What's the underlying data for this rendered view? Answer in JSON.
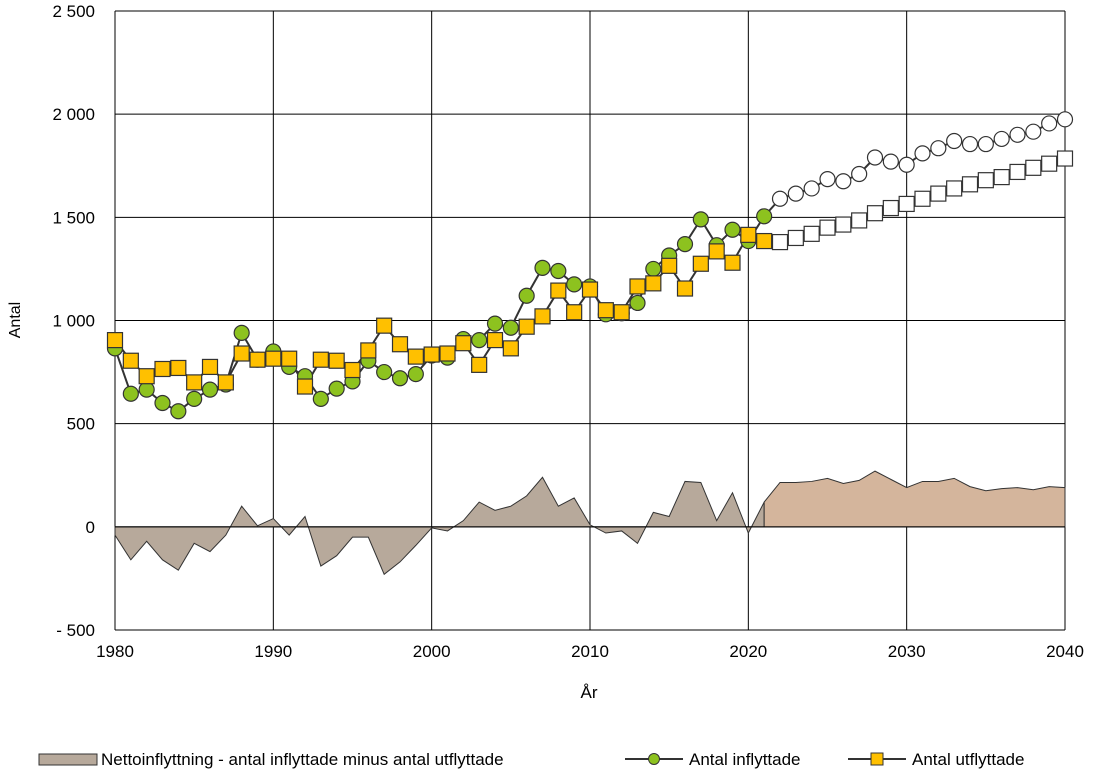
{
  "chart_data": {
    "type": "line",
    "title": "",
    "xlabel": "År",
    "ylabel": "Antal",
    "xlim": [
      1980,
      2040
    ],
    "ylim": [
      -500,
      2500
    ],
    "grid": true,
    "legend_position": "bottom",
    "x_ticks": [
      1980,
      1990,
      2000,
      2010,
      2020,
      2030,
      2040
    ],
    "x_tick_labels": [
      "1980",
      "1990",
      "2000",
      "2010",
      "2020",
      "2030",
      "2040"
    ],
    "y_ticks": [
      -500,
      0,
      500,
      1000,
      1500,
      2000,
      2500
    ],
    "y_tick_labels": [
      "- 500",
      "0",
      "500",
      "1 000",
      "1 500",
      "2 000",
      "2 500"
    ],
    "forecast_start_year": 2022,
    "colors": {
      "inflyttade": "#8dc21f",
      "utflyttade": "#ffc000",
      "netto_historical": "#b7a99b",
      "netto_forecast": "#d4b59c",
      "line": "#333333"
    },
    "series": [
      {
        "name": "Nettoinflyttning - antal inflyttade minus antal utflyttade",
        "kind": "area",
        "x": [
          1980,
          1981,
          1982,
          1983,
          1984,
          1985,
          1986,
          1987,
          1988,
          1989,
          1990,
          1991,
          1992,
          1993,
          1994,
          1995,
          1996,
          1997,
          1998,
          1999,
          2000,
          2001,
          2002,
          2003,
          2004,
          2005,
          2006,
          2007,
          2008,
          2009,
          2010,
          2011,
          2012,
          2013,
          2014,
          2015,
          2016,
          2017,
          2018,
          2019,
          2020,
          2021,
          2022,
          2023,
          2024,
          2025,
          2026,
          2027,
          2028,
          2029,
          2030,
          2031,
          2032,
          2033,
          2034,
          2035,
          2036,
          2037,
          2038,
          2039,
          2040
        ],
        "values": [
          -40,
          -160,
          -70,
          -160,
          -210,
          -80,
          -120,
          -40,
          100,
          5,
          40,
          -40,
          50,
          -190,
          -140,
          -50,
          -50,
          -230,
          -170,
          -90,
          -5,
          -20,
          30,
          120,
          80,
          100,
          150,
          240,
          100,
          140,
          10,
          -30,
          -20,
          -80,
          70,
          50,
          220,
          215,
          30,
          165,
          -30,
          120,
          215,
          215,
          220,
          235,
          210,
          225,
          270,
          230,
          190,
          220,
          220,
          235,
          195,
          175,
          185,
          190,
          180,
          195,
          190
        ]
      },
      {
        "name": "Antal inflyttade",
        "kind": "line-circle",
        "x": [
          1980,
          1981,
          1982,
          1983,
          1984,
          1985,
          1986,
          1987,
          1988,
          1989,
          1990,
          1991,
          1992,
          1993,
          1994,
          1995,
          1996,
          1997,
          1998,
          1999,
          2000,
          2001,
          2002,
          2003,
          2004,
          2005,
          2006,
          2007,
          2008,
          2009,
          2010,
          2011,
          2012,
          2013,
          2014,
          2015,
          2016,
          2017,
          2018,
          2019,
          2020,
          2021,
          2022,
          2023,
          2024,
          2025,
          2026,
          2027,
          2028,
          2029,
          2030,
          2031,
          2032,
          2033,
          2034,
          2035,
          2036,
          2037,
          2038,
          2039,
          2040
        ],
        "values": [
          865,
          645,
          665,
          600,
          560,
          620,
          665,
          690,
          940,
          810,
          850,
          775,
          730,
          620,
          670,
          705,
          805,
          750,
          720,
          740,
          830,
          820,
          910,
          905,
          985,
          965,
          1120,
          1255,
          1240,
          1175,
          1165,
          1030,
          1035,
          1085,
          1250,
          1315,
          1370,
          1490,
          1365,
          1440,
          1385,
          1505,
          1590,
          1615,
          1640,
          1685,
          1675,
          1710,
          1790,
          1770,
          1755,
          1810,
          1835,
          1870,
          1855,
          1855,
          1880,
          1900,
          1915,
          1955,
          1975
        ]
      },
      {
        "name": "Antal utflyttade",
        "kind": "line-square",
        "x": [
          1980,
          1981,
          1982,
          1983,
          1984,
          1985,
          1986,
          1987,
          1988,
          1989,
          1990,
          1991,
          1992,
          1993,
          1994,
          1995,
          1996,
          1997,
          1998,
          1999,
          2000,
          2001,
          2002,
          2003,
          2004,
          2005,
          2006,
          2007,
          2008,
          2009,
          2010,
          2011,
          2012,
          2013,
          2014,
          2015,
          2016,
          2017,
          2018,
          2019,
          2020,
          2021,
          2022,
          2023,
          2024,
          2025,
          2026,
          2027,
          2028,
          2029,
          2030,
          2031,
          2032,
          2033,
          2034,
          2035,
          2036,
          2037,
          2038,
          2039,
          2040
        ],
        "values": [
          905,
          805,
          730,
          765,
          770,
          700,
          775,
          700,
          840,
          810,
          815,
          815,
          680,
          810,
          805,
          760,
          855,
          975,
          885,
          825,
          835,
          840,
          890,
          785,
          905,
          865,
          970,
          1020,
          1145,
          1040,
          1150,
          1050,
          1040,
          1165,
          1180,
          1265,
          1155,
          1275,
          1335,
          1280,
          1415,
          1385,
          1380,
          1400,
          1420,
          1450,
          1465,
          1485,
          1520,
          1545,
          1565,
          1590,
          1615,
          1640,
          1660,
          1680,
          1695,
          1720,
          1740,
          1760,
          1785
        ]
      }
    ]
  }
}
